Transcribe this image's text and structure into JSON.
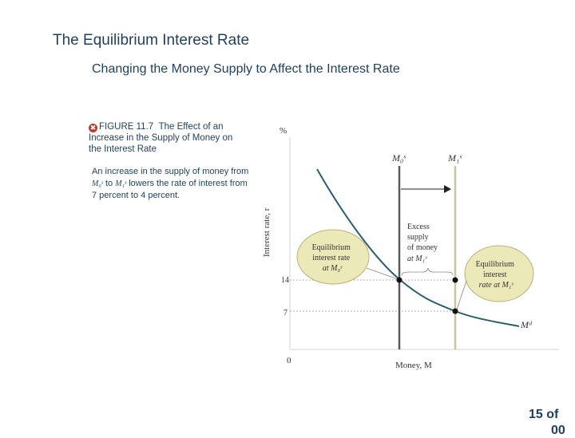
{
  "slide": {
    "title": "The Equilibrium Interest Rate",
    "subtitle": "Changing the Money Supply to Affect the Interest Rate",
    "page_number": "15 of",
    "page_number_overflow": "00"
  },
  "figure": {
    "label": "FIGURE 11.7",
    "caption": "The Effect of an Increase in the Supply of Money on the Interest Rate",
    "description_parts": [
      "An increase in the supply of money from",
      "to",
      "lowers the rate of interest from 7 percent to 4 percent."
    ],
    "ms0_symbol": "M₀ˢ",
    "ms1_symbol": "M₁ˢ"
  },
  "diagram": {
    "y_unit": "%",
    "y_axis_label": "Interest rate, r",
    "x_axis_label": "Money, M",
    "origin_label": "0",
    "tick_14": "14",
    "tick_7": "7",
    "ms0_label": "M₀ˢ",
    "ms1_label": "M₁ˢ",
    "md_label": "Mᵈ",
    "excess_label": [
      "Excess",
      "supply",
      "of money",
      "at M₁ˢ"
    ],
    "eq0_label": [
      "Equilibrium",
      "interest rate",
      "at M₀ˢ"
    ],
    "eq1_label": [
      "Equilibrium",
      "interest",
      "rate at M₁ˢ"
    ],
    "colors": {
      "demand_curve": "#2c5f6e",
      "ms0_line": "#5a5a5a",
      "ms1_line": "#c9c59a",
      "bubble_fill": "#ece9b8",
      "bubble_stroke": "#b9b27a"
    }
  }
}
